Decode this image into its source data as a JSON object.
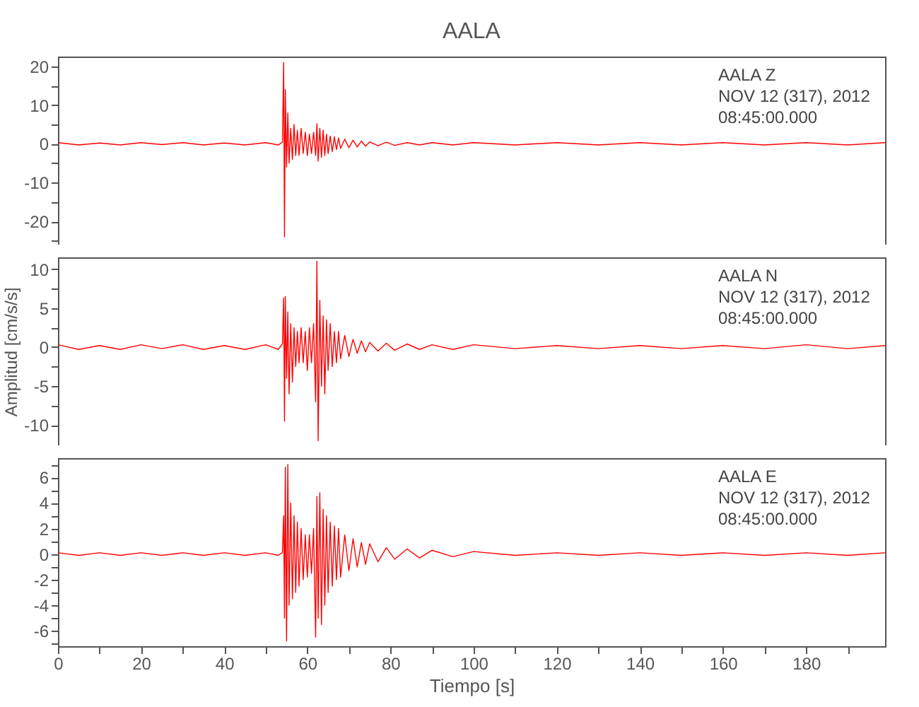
{
  "chart_data": [
    {
      "type": "line",
      "title": "AALA",
      "annotations": [
        "AALA   Z",
        "NOV 12 (317), 2012",
        "08:45:00.000"
      ],
      "tick_labels": "y",
      "xlim": [
        0,
        199
      ],
      "xticks": [
        0,
        {
          "value": 10,
          "label": null
        },
        20,
        {
          "value": 30,
          "label": null
        },
        40,
        {
          "value": 50,
          "label": null
        },
        60,
        {
          "value": 70,
          "label": null
        },
        80,
        {
          "value": 90,
          "label": null
        },
        100,
        {
          "value": 110,
          "label": null
        },
        120,
        {
          "value": 130,
          "label": null
        },
        140,
        {
          "value": 150,
          "label": null
        },
        160,
        {
          "value": 170,
          "label": null
        },
        180,
        {
          "value": 190,
          "label": null
        }
      ],
      "ylim": [
        -26,
        22.5
      ],
      "yticks": [
        {
          "value": -25,
          "label": null
        },
        -20,
        {
          "value": -15,
          "label": null
        },
        -10,
        {
          "value": -5,
          "label": null
        },
        0,
        {
          "value": 5,
          "label": null
        },
        10,
        {
          "value": 15,
          "label": null
        },
        20
      ],
      "x": [
        0,
        5,
        10,
        15,
        20,
        25,
        30,
        35,
        40,
        45,
        50,
        53,
        54,
        54.3,
        54.5,
        54.7,
        55,
        55.3,
        55.6,
        56,
        56.4,
        56.8,
        57.2,
        57.6,
        58,
        58.5,
        59,
        59.5,
        60,
        60.5,
        61,
        61.5,
        62,
        62.3,
        62.6,
        63,
        63.4,
        63.8,
        64.2,
        64.6,
        65,
        65.5,
        66,
        66.5,
        67,
        67.5,
        68,
        69,
        70,
        71,
        72,
        73,
        74,
        75,
        77,
        79,
        81,
        84,
        87,
        90,
        95,
        100,
        110,
        120,
        130,
        140,
        150,
        160,
        170,
        180,
        190,
        199
      ],
      "series": [
        {
          "color": "#ff0000",
          "values": [
            0.3,
            -0.3,
            0.2,
            -0.3,
            0.3,
            -0.2,
            0.3,
            -0.3,
            0.2,
            -0.3,
            0.3,
            -0.3,
            0.4,
            21,
            -24,
            14,
            -6,
            8,
            -5,
            4,
            -4,
            5,
            -3,
            3.5,
            -3,
            4,
            -2.5,
            3,
            -3,
            2.5,
            -2.5,
            3,
            -3,
            5.2,
            -4.5,
            4,
            -3.5,
            3.5,
            -3,
            2.5,
            -2.5,
            2,
            -2,
            1.8,
            -1.5,
            1.5,
            -1.2,
            1.2,
            -1,
            0.9,
            -0.8,
            0.7,
            -0.6,
            0.5,
            -0.5,
            0.4,
            -0.4,
            0.3,
            -0.3,
            0.3,
            -0.3,
            0.3,
            -0.3,
            0.3,
            -0.3,
            0.3,
            -0.3,
            0.3,
            -0.3,
            0.3,
            -0.3,
            0.3
          ]
        }
      ]
    },
    {
      "type": "line",
      "ylabel": "Amplitud [cm/s/s]",
      "annotations": [
        "AALA   N",
        "NOV 12 (317), 2012",
        "08:45:00.000"
      ],
      "tick_labels": "y",
      "xlim": [
        0,
        199
      ],
      "xticks": [
        0,
        {
          "value": 10,
          "label": null
        },
        20,
        {
          "value": 30,
          "label": null
        },
        40,
        {
          "value": 50,
          "label": null
        },
        60,
        {
          "value": 70,
          "label": null
        },
        80,
        {
          "value": 90,
          "label": null
        },
        100,
        {
          "value": 110,
          "label": null
        },
        120,
        {
          "value": 130,
          "label": null
        },
        140,
        {
          "value": 150,
          "label": null
        },
        160,
        {
          "value": 170,
          "label": null
        },
        180,
        {
          "value": 190,
          "label": null
        }
      ],
      "ylim": [
        -12.6,
        11.5
      ],
      "yticks": [
        -10,
        {
          "value": -7.5,
          "label": null
        },
        -5,
        {
          "value": -2.5,
          "label": null
        },
        0,
        {
          "value": 2.5,
          "label": null
        },
        5,
        {
          "value": 7.5,
          "label": null
        },
        10
      ],
      "x": [
        0,
        5,
        10,
        15,
        20,
        25,
        30,
        35,
        40,
        45,
        50,
        53,
        54,
        54.3,
        54.5,
        54.7,
        55,
        55.3,
        55.6,
        56,
        56.4,
        56.8,
        57.2,
        57.6,
        58,
        58.5,
        59,
        59.5,
        60,
        60.5,
        61,
        61.5,
        62,
        62.3,
        62.6,
        63,
        63.4,
        63.8,
        64.2,
        64.6,
        65,
        65.5,
        66,
        66.5,
        67,
        67.5,
        68,
        69,
        70,
        71,
        72,
        73,
        74,
        75,
        77,
        79,
        81,
        84,
        87,
        90,
        95,
        100,
        110,
        120,
        130,
        140,
        150,
        160,
        170,
        180,
        190,
        199
      ],
      "series": [
        {
          "color": "#ff0000",
          "values": [
            0.3,
            -0.3,
            0.2,
            -0.3,
            0.3,
            -0.2,
            0.3,
            -0.3,
            0.2,
            -0.3,
            0.3,
            -0.3,
            0.4,
            6.3,
            -9.5,
            6.5,
            -4,
            4.5,
            -6,
            3,
            -4.5,
            2.5,
            -2.5,
            2,
            -2,
            2.5,
            -2,
            2,
            -3,
            2.5,
            -2,
            3,
            -7,
            11,
            -12,
            6,
            -5,
            4,
            -6,
            3.5,
            -3,
            3,
            -2.5,
            2,
            -2,
            2,
            -1.5,
            1.5,
            -1.2,
            1,
            -0.8,
            0.8,
            -0.6,
            0.6,
            -0.5,
            0.5,
            -0.4,
            0.4,
            -0.3,
            0.3,
            -0.3,
            0.3,
            -0.2,
            0.2,
            -0.2,
            0.2,
            -0.2,
            0.2,
            -0.2,
            0.3,
            -0.2,
            0.2
          ]
        }
      ]
    },
    {
      "type": "line",
      "xlabel": "Tiempo [s]",
      "annotations": [
        "AALA   E",
        "NOV 12 (317), 2012",
        "08:45:00.000"
      ],
      "xlim": [
        0,
        199
      ],
      "xticks": [
        0,
        {
          "value": 10,
          "label": null
        },
        20,
        {
          "value": 30,
          "label": null
        },
        40,
        {
          "value": 50,
          "label": null
        },
        60,
        {
          "value": 70,
          "label": null
        },
        80,
        {
          "value": 90,
          "label": null
        },
        100,
        {
          "value": 110,
          "label": null
        },
        120,
        {
          "value": 130,
          "label": null
        },
        140,
        {
          "value": 150,
          "label": null
        },
        160,
        {
          "value": 170,
          "label": null
        },
        180,
        {
          "value": 190,
          "label": null
        }
      ],
      "ylim": [
        -7.2,
        7.5
      ],
      "yticks": [
        {
          "value": -7,
          "label": null
        },
        -6,
        {
          "value": -5,
          "label": null
        },
        -4,
        {
          "value": -3,
          "label": null
        },
        -2,
        {
          "value": -1,
          "label": null
        },
        0,
        {
          "value": 1,
          "label": null
        },
        2,
        {
          "value": 3,
          "label": null
        },
        4,
        {
          "value": 5,
          "label": null
        },
        6,
        {
          "value": 7,
          "label": null
        }
      ],
      "x": [
        0,
        5,
        10,
        15,
        20,
        25,
        30,
        35,
        40,
        45,
        50,
        53,
        54,
        54.3,
        54.5,
        54.7,
        55,
        55.3,
        55.6,
        56,
        56.4,
        56.8,
        57.2,
        57.6,
        58,
        58.5,
        59,
        59.5,
        60,
        60.5,
        61,
        61.5,
        62,
        62.3,
        62.6,
        63,
        63.4,
        63.8,
        64.2,
        64.6,
        65,
        65.5,
        66,
        66.5,
        67,
        67.5,
        68,
        69,
        70,
        71,
        72,
        73,
        74,
        75,
        77,
        79,
        81,
        84,
        87,
        90,
        95,
        100,
        110,
        120,
        130,
        140,
        150,
        160,
        170,
        180,
        190,
        199
      ],
      "series": [
        {
          "color": "#ff0000",
          "values": [
            0.1,
            -0.1,
            0.1,
            -0.1,
            0.1,
            -0.1,
            0.1,
            -0.1,
            0.1,
            -0.1,
            0.1,
            -0.1,
            0.1,
            3,
            -5,
            6.8,
            -6.8,
            7,
            -4,
            4,
            -3.5,
            3,
            -3,
            2.5,
            -2.5,
            2,
            -2,
            1.5,
            -1.8,
            1.5,
            -1.5,
            2,
            -6.5,
            4.5,
            -5,
            4.8,
            -5.5,
            3.5,
            -4,
            3,
            -3,
            2.5,
            -2.5,
            2.2,
            -2,
            2,
            -1.8,
            1.5,
            -1.3,
            1.2,
            -1,
            0.9,
            -0.8,
            0.8,
            -0.6,
            0.5,
            -0.4,
            0.4,
            -0.3,
            0.3,
            -0.2,
            0.2,
            -0.1,
            0.1,
            -0.1,
            0.1,
            -0.1,
            0.1,
            -0.1,
            0.1,
            -0.1,
            0.1
          ]
        }
      ]
    }
  ]
}
